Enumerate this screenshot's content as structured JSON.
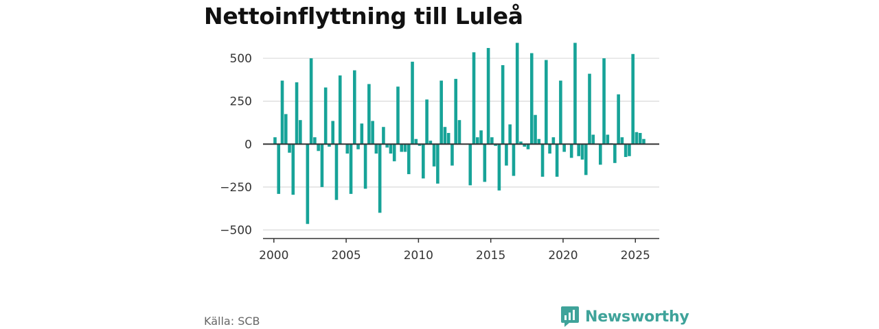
{
  "title": "Nettoinflyttning till Luleå",
  "source": "Källa: SCB",
  "brand": {
    "name": "Newsworthy",
    "icon": "newsworthy-logo-icon"
  },
  "colors": {
    "bar": "#17a398",
    "grid": "#d9d9d9",
    "axis": "#333333",
    "brand": "#3fa39a"
  },
  "chart_data": {
    "type": "bar",
    "title": "Nettoinflyttning till Luleå",
    "xlabel": "",
    "ylabel": "",
    "x_unit": "month",
    "xlim": [
      1999.25,
      2026.65
    ],
    "ylim": [
      -550,
      600
    ],
    "yticks": [
      -500,
      -250,
      0,
      250,
      500
    ],
    "ytick_labels": [
      "−500",
      "−250",
      "0",
      "250",
      "500"
    ],
    "xticks": [
      2000,
      2005,
      2010,
      2015,
      2020,
      2025
    ],
    "xtick_labels": [
      "2000",
      "2005",
      "2010",
      "2015",
      "2020",
      "2025"
    ],
    "grid": true,
    "legend": "none",
    "series": [
      {
        "values": [
          [
            2000.08,
            40
          ],
          [
            2000.33,
            -290
          ],
          [
            2000.58,
            370
          ],
          [
            2000.83,
            175
          ],
          [
            2001.08,
            -50
          ],
          [
            2001.33,
            -295
          ],
          [
            2001.58,
            360
          ],
          [
            2001.83,
            140
          ],
          [
            2002.33,
            -465
          ],
          [
            2002.58,
            500
          ],
          [
            2002.83,
            40
          ],
          [
            2003.08,
            -40
          ],
          [
            2003.33,
            -250
          ],
          [
            2003.58,
            330
          ],
          [
            2003.83,
            -15
          ],
          [
            2004.08,
            135
          ],
          [
            2004.33,
            -325
          ],
          [
            2004.58,
            400
          ],
          [
            2005.08,
            -55
          ],
          [
            2005.33,
            -290
          ],
          [
            2005.58,
            430
          ],
          [
            2005.83,
            -30
          ],
          [
            2006.08,
            120
          ],
          [
            2006.33,
            -260
          ],
          [
            2006.58,
            350
          ],
          [
            2006.83,
            135
          ],
          [
            2007.08,
            -55
          ],
          [
            2007.33,
            -400
          ],
          [
            2007.58,
            100
          ],
          [
            2007.83,
            -20
          ],
          [
            2008.08,
            -55
          ],
          [
            2008.33,
            -100
          ],
          [
            2008.58,
            335
          ],
          [
            2008.83,
            -45
          ],
          [
            2009.08,
            -45
          ],
          [
            2009.33,
            -175
          ],
          [
            2009.58,
            480
          ],
          [
            2009.83,
            30
          ],
          [
            2010.08,
            -10
          ],
          [
            2010.33,
            -200
          ],
          [
            2010.58,
            260
          ],
          [
            2010.83,
            20
          ],
          [
            2011.08,
            -130
          ],
          [
            2011.33,
            -230
          ],
          [
            2011.58,
            370
          ],
          [
            2011.83,
            100
          ],
          [
            2012.08,
            65
          ],
          [
            2012.33,
            -125
          ],
          [
            2012.58,
            380
          ],
          [
            2012.83,
            140
          ],
          [
            2013.58,
            -240
          ],
          [
            2013.83,
            535
          ],
          [
            2014.08,
            40
          ],
          [
            2014.33,
            80
          ],
          [
            2014.58,
            -220
          ],
          [
            2014.83,
            560
          ],
          [
            2015.08,
            40
          ],
          [
            2015.33,
            -10
          ],
          [
            2015.58,
            -270
          ],
          [
            2015.83,
            460
          ],
          [
            2016.08,
            -125
          ],
          [
            2016.33,
            115
          ],
          [
            2016.58,
            -185
          ],
          [
            2016.83,
            590
          ],
          [
            2017.08,
            15
          ],
          [
            2017.33,
            -15
          ],
          [
            2017.58,
            -30
          ],
          [
            2017.83,
            530
          ],
          [
            2018.08,
            170
          ],
          [
            2018.33,
            30
          ],
          [
            2018.58,
            -190
          ],
          [
            2018.83,
            490
          ],
          [
            2019.08,
            -55
          ],
          [
            2019.33,
            40
          ],
          [
            2019.58,
            -190
          ],
          [
            2019.83,
            370
          ],
          [
            2020.08,
            -45
          ],
          [
            2020.58,
            -80
          ],
          [
            2020.83,
            590
          ],
          [
            2021.08,
            -70
          ],
          [
            2021.33,
            -90
          ],
          [
            2021.58,
            -180
          ],
          [
            2021.83,
            410
          ],
          [
            2022.08,
            55
          ],
          [
            2022.58,
            -120
          ],
          [
            2022.83,
            500
          ],
          [
            2023.08,
            55
          ],
          [
            2023.33,
            5
          ],
          [
            2023.58,
            -110
          ],
          [
            2023.83,
            290
          ],
          [
            2024.08,
            40
          ],
          [
            2024.33,
            -75
          ],
          [
            2024.58,
            -70
          ],
          [
            2024.83,
            525
          ],
          [
            2025.08,
            70
          ],
          [
            2025.33,
            65
          ],
          [
            2025.58,
            30
          ]
        ]
      }
    ]
  }
}
